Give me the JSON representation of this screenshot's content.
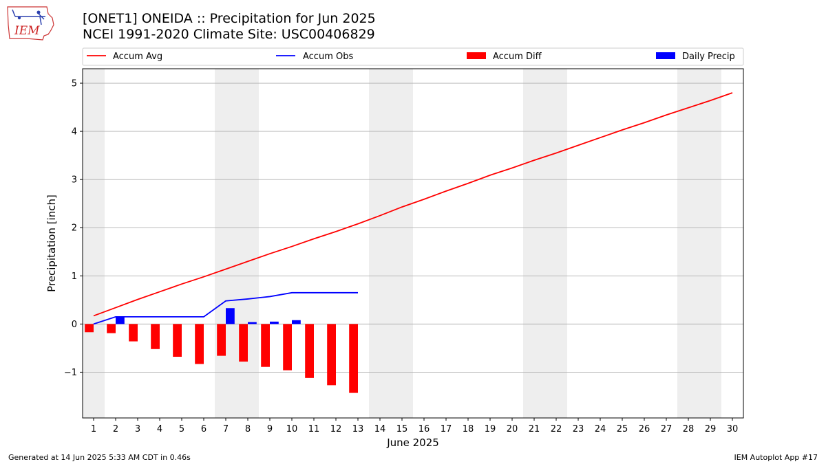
{
  "header": {
    "title_line1": "[ONET1] ONEIDA :: Precipitation for Jun 2025",
    "title_line2": "NCEI 1991-2020 Climate Site: USC00406829",
    "logo_text": "IEM"
  },
  "footer": {
    "generated": "Generated at 14 Jun 2025 5:33 AM CDT in 0.46s",
    "app": "IEM Autoplot App #17"
  },
  "colors": {
    "accum_avg": "#ff0000",
    "accum_obs": "#0000ff",
    "accum_diff": "#ff0000",
    "daily_precip": "#0000ff",
    "weekend_shade": "#eeeeee",
    "grid": "#b0b0b0"
  },
  "chart_data": {
    "type": "bar",
    "title": "[ONET1] ONEIDA :: Precipitation for Jun 2025",
    "subtitle": "NCEI 1991-2020 Climate Site: USC00406829",
    "xlabel": "June 2025",
    "ylabel": "Precipitation [inch]",
    "x": [
      1,
      2,
      3,
      4,
      5,
      6,
      7,
      8,
      9,
      10,
      11,
      12,
      13,
      14,
      15,
      16,
      17,
      18,
      19,
      20,
      21,
      22,
      23,
      24,
      25,
      26,
      27,
      28,
      29,
      30
    ],
    "xlim": [
      0.5,
      30.5
    ],
    "ylim": [
      -1.95,
      5.3
    ],
    "yticks": [
      -1,
      0,
      1,
      2,
      3,
      4,
      5
    ],
    "ytick_labels": [
      "−1",
      "0",
      "1",
      "2",
      "3",
      "4",
      "5"
    ],
    "grid": "y-major",
    "legend_position": "top, above plot",
    "weekend_shading": [
      [
        0.5,
        1.5
      ],
      [
        6.5,
        8.5
      ],
      [
        13.5,
        15.5
      ],
      [
        20.5,
        22.5
      ],
      [
        27.5,
        29.5
      ]
    ],
    "series": [
      {
        "name": "Accum Avg",
        "kind": "line",
        "x": [
          1,
          2,
          3,
          4,
          5,
          6,
          7,
          8,
          9,
          10,
          11,
          12,
          13,
          14,
          15,
          16,
          17,
          18,
          19,
          20,
          21,
          22,
          23,
          24,
          25,
          26,
          27,
          28,
          29,
          30
        ],
        "values": [
          0.17,
          0.34,
          0.51,
          0.67,
          0.83,
          0.98,
          1.14,
          1.3,
          1.46,
          1.61,
          1.77,
          1.92,
          2.08,
          2.25,
          2.43,
          2.59,
          2.76,
          2.92,
          3.09,
          3.24,
          3.4,
          3.55,
          3.71,
          3.87,
          4.03,
          4.18,
          4.34,
          4.49,
          4.64,
          4.8
        ]
      },
      {
        "name": "Accum Obs",
        "kind": "line",
        "x": [
          1,
          2,
          3,
          4,
          5,
          6,
          7,
          8,
          9,
          10,
          11,
          12,
          13
        ],
        "values": [
          0.0,
          0.15,
          0.15,
          0.15,
          0.15,
          0.15,
          0.48,
          0.52,
          0.57,
          0.65,
          0.65,
          0.65,
          0.65
        ]
      },
      {
        "name": "Accum Diff",
        "kind": "bar",
        "x": [
          1,
          2,
          3,
          4,
          5,
          6,
          7,
          8,
          9,
          10,
          11,
          12,
          13
        ],
        "values": [
          -0.17,
          -0.19,
          -0.36,
          -0.52,
          -0.68,
          -0.83,
          -0.66,
          -0.78,
          -0.89,
          -0.96,
          -1.12,
          -1.27,
          -1.43
        ]
      },
      {
        "name": "Daily Precip",
        "kind": "bar",
        "x": [
          1,
          2,
          3,
          4,
          5,
          6,
          7,
          8,
          9,
          10,
          11,
          12,
          13
        ],
        "values": [
          0.0,
          0.15,
          0.0,
          0.0,
          0.0,
          0.0,
          0.33,
          0.04,
          0.05,
          0.08,
          0.0,
          0.0,
          0.0
        ]
      }
    ]
  }
}
